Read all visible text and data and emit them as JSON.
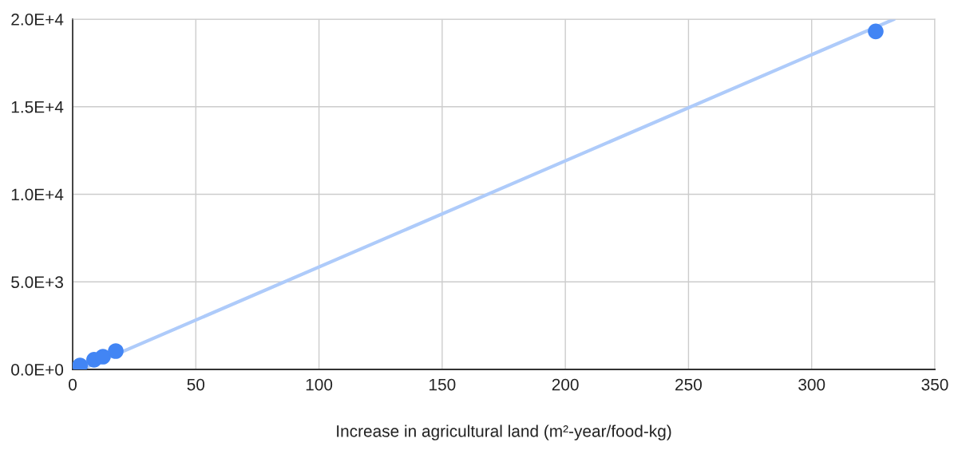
{
  "chart_data": {
    "type": "scatter",
    "xlabel": "Increase in agricultural land (m²-year/food-kg)",
    "xlim": [
      0,
      350
    ],
    "xticks": [
      0,
      50,
      100,
      150,
      200,
      250,
      300,
      350
    ],
    "ylim": [
      0,
      20000
    ],
    "yticks": [
      {
        "value": 0,
        "label": "0.0E+0"
      },
      {
        "value": 5000,
        "label": "5.0E+3"
      },
      {
        "value": 10000,
        "label": "1.0E+4"
      },
      {
        "value": 15000,
        "label": "1.5E+4"
      },
      {
        "value": 20000,
        "label": "2.0E+4"
      }
    ],
    "grid": true,
    "series": [
      {
        "type": "line",
        "color": "#aecbfa",
        "x": [
          3.5,
          333.5
        ],
        "values": [
          0,
          20000
        ],
        "marker": "none"
      },
      {
        "color": "#4285f4",
        "marker": "circle",
        "x": [
          3,
          7.1,
          8.7,
          12.3,
          17.5,
          326
        ],
        "values": [
          230,
          null,
          550,
          730,
          1050,
          19300
        ]
      }
    ]
  }
}
